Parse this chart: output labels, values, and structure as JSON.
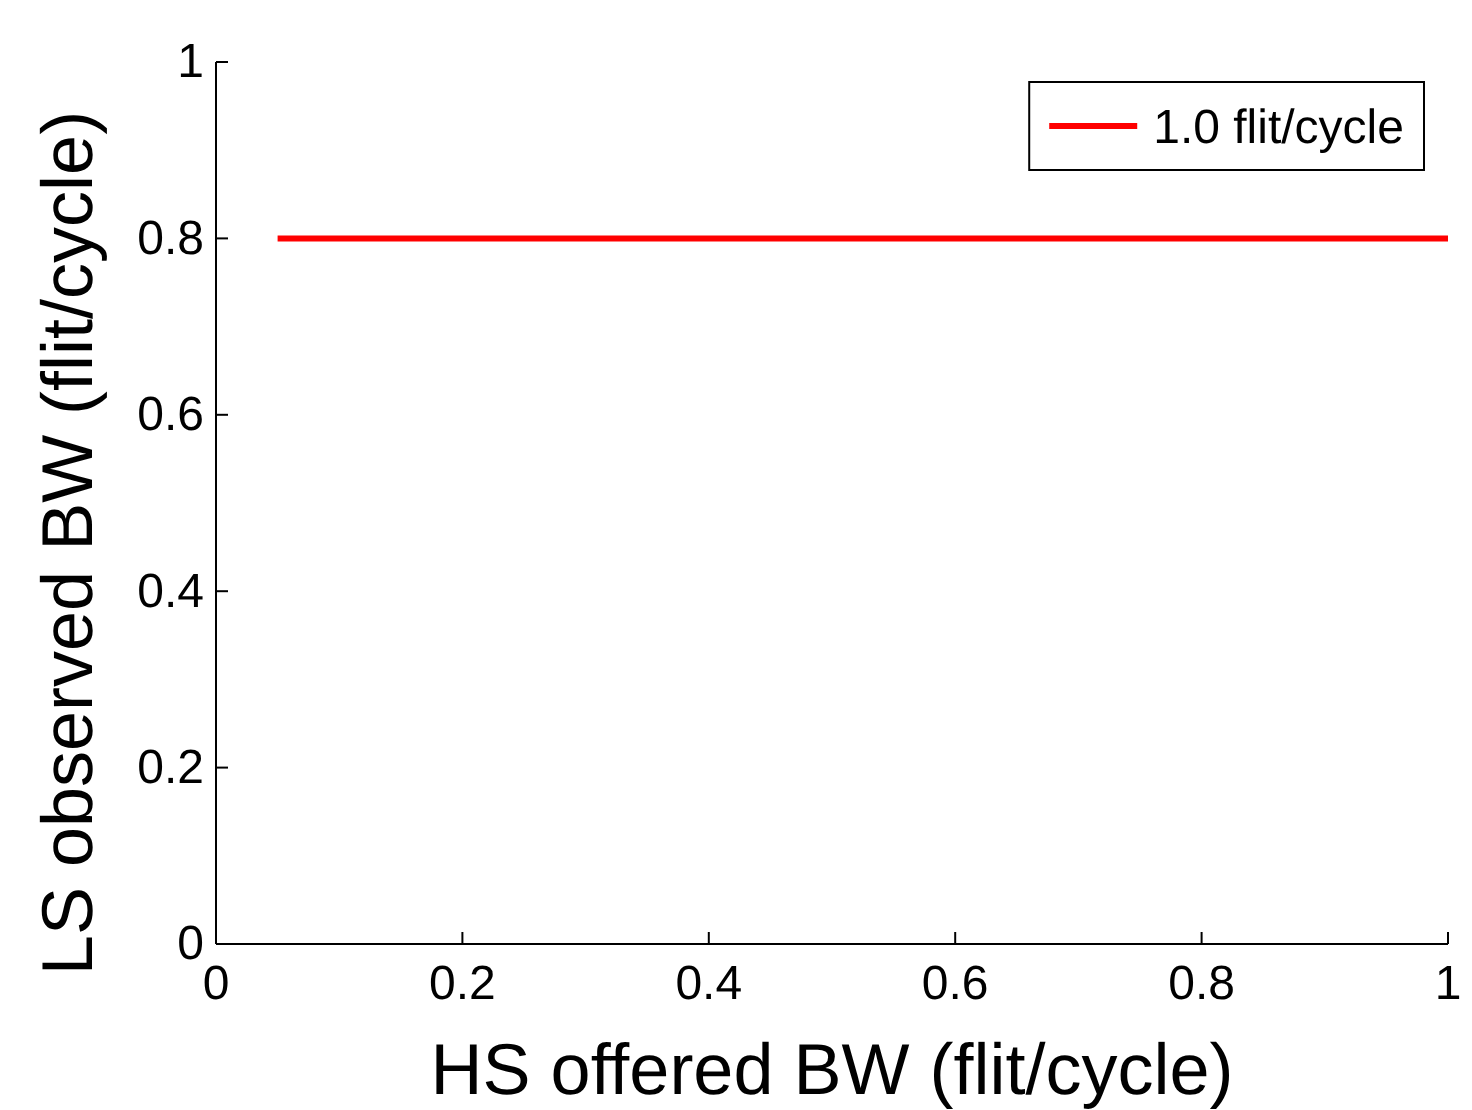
{
  "chart_data": {
    "type": "line",
    "xlabel": "HS offered BW (flit/cycle)",
    "ylabel": "LS observed BW (flit/cycle)",
    "x": [
      0.05,
      1
    ],
    "series": [
      {
        "name": "1.0 flit/cycle",
        "color": "#ff0000",
        "values": [
          0.8,
          0.8
        ]
      }
    ],
    "xlim": [
      0,
      1
    ],
    "xticks": [
      0,
      0.2,
      0.4,
      0.6,
      0.8,
      1
    ],
    "ylim": [
      0,
      1
    ],
    "yticks": [
      0,
      0.2,
      0.4,
      0.6,
      0.8,
      1
    ],
    "grid": false,
    "legend": "top right",
    "marker": "none",
    "line_style": "solid"
  }
}
